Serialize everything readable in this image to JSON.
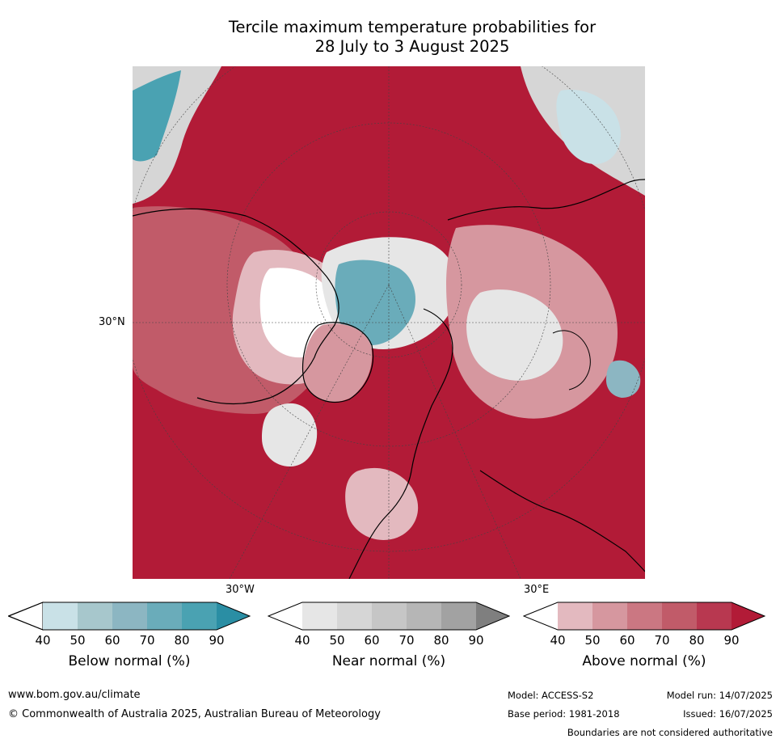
{
  "title": {
    "line1": "Tercile maximum temperature probabilities for",
    "line2": "28 July to 3 August 2025"
  },
  "map": {
    "lat_label": "30°N",
    "lon_label_west": "30°W",
    "lon_label_east": "30°E"
  },
  "colorbars": [
    {
      "label": "Below normal (%)",
      "ticks": [
        "40",
        "50",
        "60",
        "70",
        "80",
        "90"
      ],
      "colors": [
        "#ffffff",
        "#c9e1e7",
        "#a7c7cc",
        "#8cb6c2",
        "#6aacba",
        "#4aa2b2",
        "#2a8ea4"
      ]
    },
    {
      "label": "Near normal (%)",
      "ticks": [
        "40",
        "50",
        "60",
        "70",
        "80",
        "90"
      ],
      "colors": [
        "#ffffff",
        "#e6e6e6",
        "#d6d6d6",
        "#c6c6c6",
        "#b6b6b6",
        "#a2a2a2",
        "#7f7f7f"
      ]
    },
    {
      "label": "Above normal (%)",
      "ticks": [
        "40",
        "50",
        "60",
        "70",
        "80",
        "90"
      ],
      "colors": [
        "#ffffff",
        "#e3b9bf",
        "#d6979f",
        "#cb7782",
        "#c15b69",
        "#b83850",
        "#b21b37"
      ]
    }
  ],
  "footer": {
    "website": "www.bom.gov.au/climate",
    "copyright": "© Commonwealth of Australia 2025, Australian Bureau of Meteorology",
    "model": "Model: ACCESS-S2",
    "base_period": "Base period: 1981-2018",
    "model_run": "Model run: 14/07/2025",
    "issued": "Issued: 16/07/2025",
    "disclaimer": "Boundaries are not considered authoritative"
  }
}
